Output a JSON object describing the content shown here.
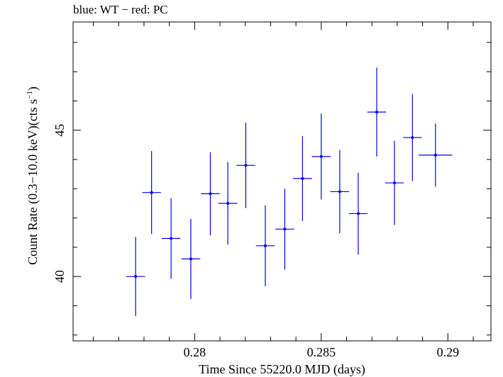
{
  "chart_data": {
    "type": "scatter",
    "title": "blue: WT − red: PC",
    "xlabel": "Time Since 55220.0 MJD (days)",
    "ylabel_main": "Count Rate (0.3−10.0 keV)(cts s",
    "ylabel_sup": "−1",
    "ylabel_close": ")",
    "xlim": [
      0.2752,
      0.2917
    ],
    "ylim": [
      37.8,
      48.7
    ],
    "x_ticks": [
      {
        "value": 0.28,
        "label": "0.28"
      },
      {
        "value": 0.285,
        "label": "0.285"
      },
      {
        "value": 0.29,
        "label": "0.29"
      }
    ],
    "x_minor_step": 0.001,
    "y_ticks": [
      {
        "value": 40,
        "label": "40"
      },
      {
        "value": 45,
        "label": "45"
      }
    ],
    "y_minor_step": 1,
    "series": [
      {
        "name": "WT",
        "color": "#0000ee",
        "points": [
          {
            "x": 0.27767,
            "xerr": 0.00037,
            "y": 40.0,
            "yerr": 1.35
          },
          {
            "x": 0.2783,
            "xerr": 0.00037,
            "y": 42.87,
            "yerr": 1.42
          },
          {
            "x": 0.27907,
            "xerr": 0.00037,
            "y": 41.3,
            "yerr": 1.38
          },
          {
            "x": 0.27985,
            "xerr": 0.00037,
            "y": 40.6,
            "yerr": 1.37
          },
          {
            "x": 0.28062,
            "xerr": 0.00037,
            "y": 42.83,
            "yerr": 1.42
          },
          {
            "x": 0.28131,
            "xerr": 0.00037,
            "y": 42.5,
            "yerr": 1.41
          },
          {
            "x": 0.28202,
            "xerr": 0.00037,
            "y": 43.8,
            "yerr": 1.46
          },
          {
            "x": 0.28279,
            "xerr": 0.00037,
            "y": 41.05,
            "yerr": 1.38
          },
          {
            "x": 0.28356,
            "xerr": 0.00037,
            "y": 41.62,
            "yerr": 1.38
          },
          {
            "x": 0.28426,
            "xerr": 0.00037,
            "y": 43.35,
            "yerr": 1.45
          },
          {
            "x": 0.285,
            "xerr": 0.00037,
            "y": 44.1,
            "yerr": 1.47
          },
          {
            "x": 0.28573,
            "xerr": 0.00037,
            "y": 42.9,
            "yerr": 1.42
          },
          {
            "x": 0.28646,
            "xerr": 0.00037,
            "y": 42.15,
            "yerr": 1.4
          },
          {
            "x": 0.28719,
            "xerr": 0.00037,
            "y": 45.62,
            "yerr": 1.52
          },
          {
            "x": 0.28789,
            "xerr": 0.00037,
            "y": 43.2,
            "yerr": 1.44
          },
          {
            "x": 0.2886,
            "xerr": 0.00037,
            "y": 44.75,
            "yerr": 1.49
          },
          {
            "x": 0.28951,
            "xerr": 0.00066,
            "y": 44.15,
            "yerr": 1.08
          }
        ]
      }
    ]
  }
}
